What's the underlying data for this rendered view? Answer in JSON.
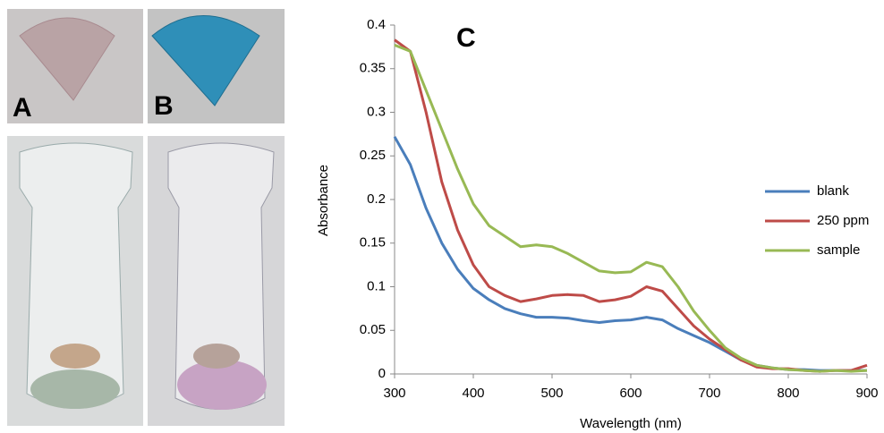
{
  "photo_labels": [
    "A",
    "B"
  ],
  "chart_data": {
    "type": "line",
    "annotation": "C",
    "x_label": "Wavelength (nm)",
    "y_label": "Absorbance",
    "x": [
      300,
      320,
      340,
      360,
      380,
      400,
      420,
      440,
      460,
      480,
      500,
      520,
      540,
      560,
      580,
      600,
      620,
      640,
      660,
      680,
      700,
      720,
      740,
      760,
      780,
      800,
      820,
      840,
      860,
      880,
      900
    ],
    "series": [
      {
        "name": "blank",
        "color": "#4a7ebb",
        "values": [
          0.272,
          0.24,
          0.19,
          0.15,
          0.12,
          0.098,
          0.085,
          0.075,
          0.069,
          0.065,
          0.065,
          0.064,
          0.061,
          0.059,
          0.061,
          0.062,
          0.065,
          0.062,
          0.052,
          0.044,
          0.036,
          0.026,
          0.016,
          0.01,
          0.007,
          0.005,
          0.005,
          0.004,
          0.004,
          0.004,
          0.004
        ]
      },
      {
        "name": "250 ppm",
        "color": "#be4b48",
        "values": [
          0.383,
          0.37,
          0.3,
          0.22,
          0.165,
          0.125,
          0.1,
          0.09,
          0.083,
          0.086,
          0.09,
          0.091,
          0.09,
          0.083,
          0.085,
          0.089,
          0.1,
          0.095,
          0.075,
          0.055,
          0.04,
          0.028,
          0.016,
          0.008,
          0.006,
          0.006,
          0.004,
          0.003,
          0.004,
          0.004,
          0.01
        ]
      },
      {
        "name": "sample",
        "color": "#98b954",
        "values": [
          0.377,
          0.37,
          0.325,
          0.28,
          0.235,
          0.195,
          0.17,
          0.158,
          0.146,
          0.148,
          0.146,
          0.138,
          0.128,
          0.118,
          0.116,
          0.117,
          0.128,
          0.123,
          0.1,
          0.072,
          0.05,
          0.03,
          0.018,
          0.01,
          0.007,
          0.005,
          0.004,
          0.003,
          0.004,
          0.003,
          0.004
        ]
      }
    ],
    "xlim": [
      300,
      900
    ],
    "ylim": [
      0,
      0.4
    ],
    "xticks": [
      300,
      400,
      500,
      600,
      700,
      800,
      900
    ],
    "yticks": [
      0,
      0.05,
      0.1,
      0.15,
      0.2,
      0.25,
      0.3,
      0.35,
      0.4
    ],
    "grid": false,
    "legend": "right"
  }
}
